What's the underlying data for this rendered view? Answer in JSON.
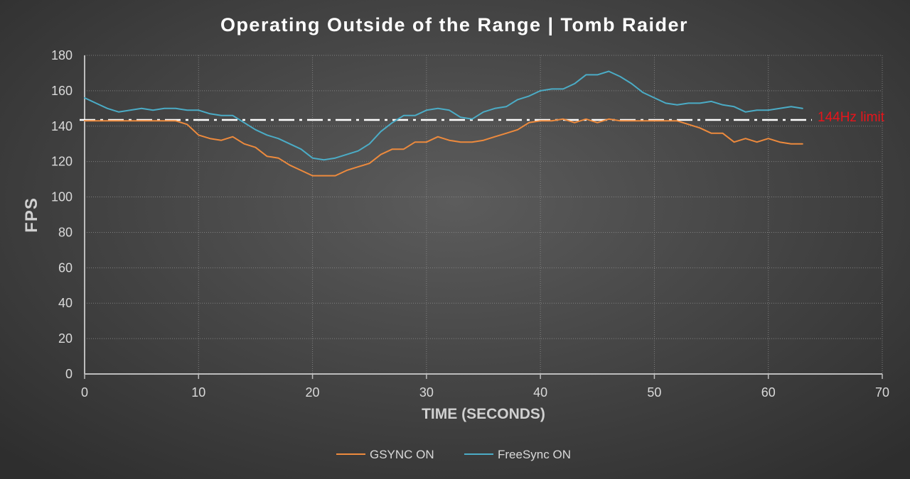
{
  "chart_data": {
    "type": "line",
    "title": "Operating Outside of the Range | Tomb Raider",
    "xlabel": "TIME (SECONDS)",
    "ylabel": "FPS",
    "xlim": [
      0,
      70
    ],
    "ylim": [
      0,
      180
    ],
    "x_ticks": [
      0,
      10,
      20,
      30,
      40,
      50,
      60,
      70
    ],
    "y_ticks": [
      0,
      20,
      40,
      60,
      80,
      100,
      120,
      140,
      160,
      180
    ],
    "grid": true,
    "legend_position": "bottom",
    "reference_line": {
      "y": 143.5,
      "label": "144Hz limit",
      "color": "#e8141b",
      "line_color": "#ffffff"
    },
    "series": [
      {
        "name": "GSYNC ON",
        "color": "#ed8a3d",
        "x": [
          0,
          1,
          2,
          3,
          4,
          5,
          6,
          7,
          8,
          9,
          10,
          11,
          12,
          13,
          14,
          15,
          16,
          17,
          18,
          19,
          20,
          21,
          22,
          23,
          24,
          25,
          26,
          27,
          28,
          29,
          30,
          31,
          32,
          33,
          34,
          35,
          36,
          37,
          38,
          39,
          40,
          41,
          42,
          43,
          44,
          45,
          46,
          47,
          48,
          49,
          50,
          51,
          52,
          53,
          54,
          55,
          56,
          57,
          58,
          59,
          60,
          61,
          62,
          63
        ],
        "values": [
          143,
          143,
          143,
          143,
          143,
          143,
          143,
          143,
          143,
          141,
          135,
          133,
          132,
          134,
          130,
          128,
          123,
          122,
          118,
          115,
          112,
          112,
          112,
          115,
          117,
          119,
          124,
          127,
          127,
          131,
          131,
          134,
          132,
          131,
          131,
          132,
          134,
          136,
          138,
          142,
          143,
          143,
          144,
          142,
          144,
          142,
          144,
          143,
          143,
          143,
          143,
          143,
          143,
          141,
          139,
          136,
          136,
          131,
          133,
          131,
          133,
          131,
          130,
          130
        ]
      },
      {
        "name": "FreeSync ON",
        "color": "#4bacc6",
        "x": [
          0,
          1,
          2,
          3,
          4,
          5,
          6,
          7,
          8,
          9,
          10,
          11,
          12,
          13,
          14,
          15,
          16,
          17,
          18,
          19,
          20,
          21,
          22,
          23,
          24,
          25,
          26,
          27,
          28,
          29,
          30,
          31,
          32,
          33,
          34,
          35,
          36,
          37,
          38,
          39,
          40,
          41,
          42,
          43,
          44,
          45,
          46,
          47,
          48,
          49,
          50,
          51,
          52,
          53,
          54,
          55,
          56,
          57,
          58,
          59,
          60,
          61,
          62,
          63
        ],
        "values": [
          156,
          153,
          150,
          148,
          149,
          150,
          149,
          150,
          150,
          149,
          149,
          147,
          146,
          146,
          142,
          138,
          135,
          133,
          130,
          127,
          122,
          121,
          122,
          124,
          126,
          130,
          137,
          142,
          146,
          146,
          149,
          150,
          149,
          145,
          144,
          148,
          150,
          151,
          155,
          157,
          160,
          161,
          161,
          164,
          169,
          169,
          171,
          168,
          164,
          159,
          156,
          153,
          152,
          153,
          153,
          154,
          152,
          151,
          148,
          149,
          149,
          150,
          151,
          150
        ]
      }
    ]
  }
}
